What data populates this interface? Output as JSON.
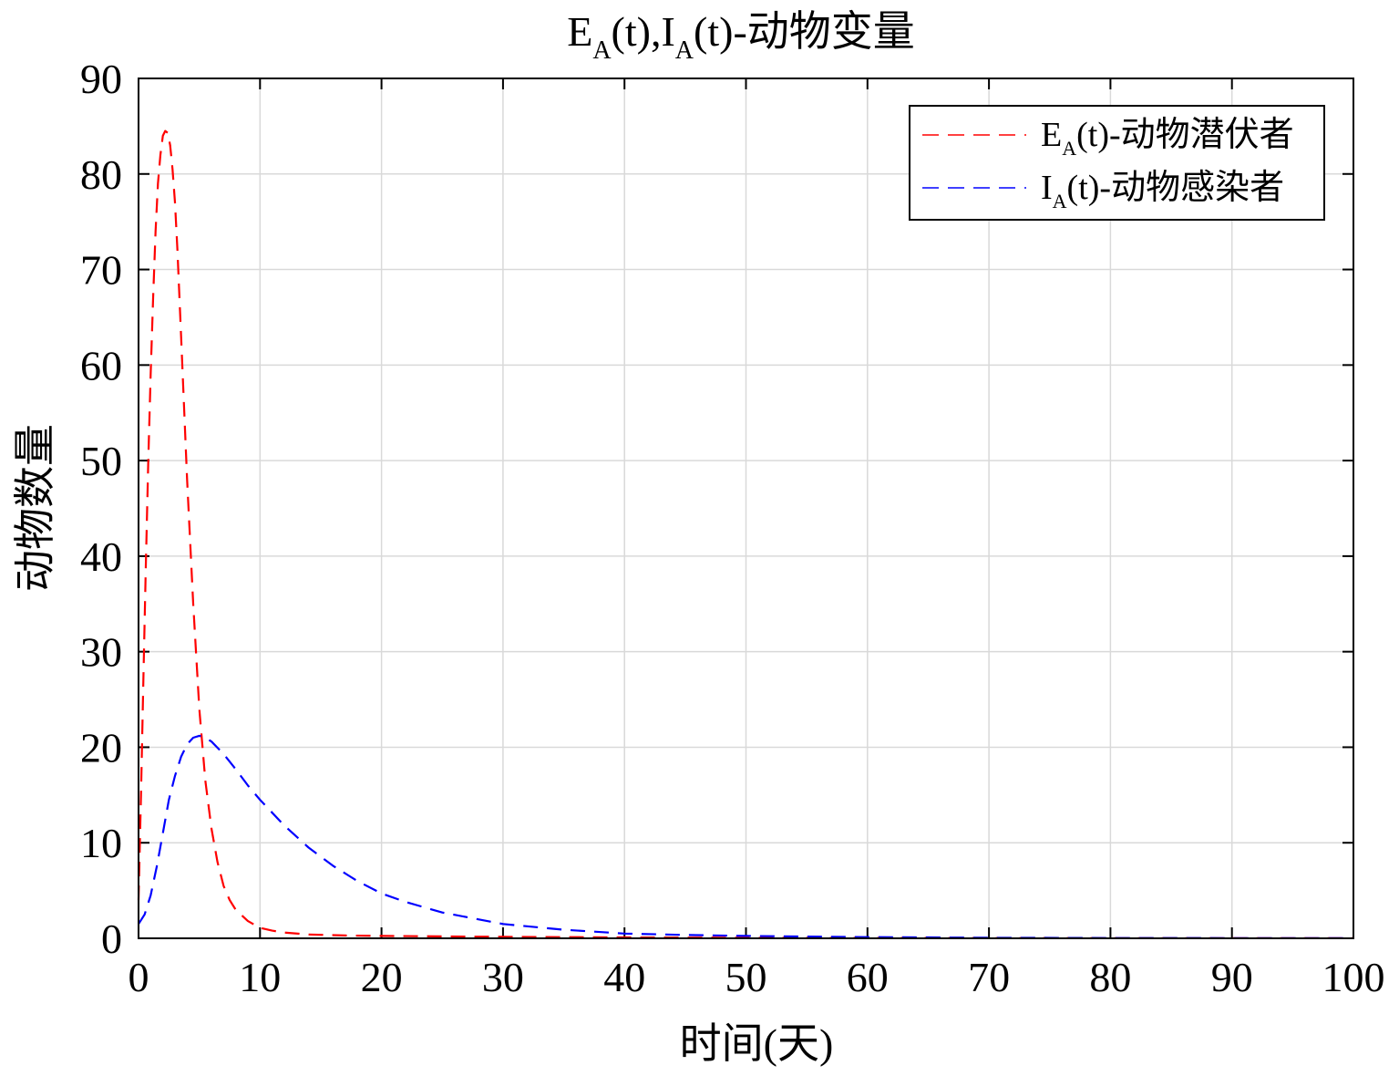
{
  "chart_data": {
    "type": "line",
    "title": {
      "main_1": "E",
      "sub_1": "A",
      "main_2": "(t),I",
      "sub_2": "A",
      "main_3": "(t)-动物变量"
    },
    "xlabel": "时间(天)",
    "ylabel": "动物数量",
    "xlim": [
      0,
      100
    ],
    "ylim": [
      0,
      90
    ],
    "xticks": [
      0,
      10,
      20,
      30,
      40,
      50,
      60,
      70,
      80,
      90,
      100
    ],
    "yticks": [
      0,
      10,
      20,
      30,
      40,
      50,
      60,
      70,
      80,
      90
    ],
    "grid": true,
    "legend_position": "top-right",
    "series": [
      {
        "legend_main": "E",
        "legend_sub": "A",
        "legend_rest": "(t)-动物潜伏者",
        "color": "#ff0000",
        "style": "dashed",
        "x": [
          0,
          0.2,
          0.4,
          0.6,
          0.8,
          1.0,
          1.2,
          1.4,
          1.6,
          1.8,
          2.0,
          2.2,
          2.4,
          2.6,
          2.8,
          3.0,
          3.2,
          3.5,
          4.0,
          4.5,
          5.0,
          5.5,
          6.0,
          6.5,
          7.0,
          7.5,
          8.0,
          9.0,
          10.0,
          11.0,
          12.0,
          14.0,
          17.0,
          20.0,
          30.0,
          40.0,
          50.0,
          60.0,
          70.0,
          80.0,
          90.0,
          100.0
        ],
        "y": [
          4,
          15,
          27,
          39,
          50,
          59,
          67,
          74,
          79,
          82,
          84,
          84.5,
          84.3,
          83,
          80.5,
          77,
          72,
          63,
          48,
          35,
          24,
          16.5,
          11.5,
          8,
          5.5,
          4,
          3,
          1.8,
          1.1,
          0.8,
          0.6,
          0.4,
          0.3,
          0.25,
          0.15,
          0.1,
          0.06,
          0.04,
          0.03,
          0.02,
          0.02,
          0.01
        ]
      },
      {
        "legend_main": "I",
        "legend_sub": "A",
        "legend_rest": "(t)-动物感染者",
        "color": "#0000ff",
        "style": "dashed",
        "x": [
          0,
          0.5,
          1.0,
          1.5,
          2.0,
          2.5,
          3.0,
          3.5,
          4.0,
          4.5,
          5.0,
          5.5,
          6.0,
          7.0,
          8.0,
          9.0,
          10.0,
          12.0,
          14.0,
          16.0,
          18.0,
          20.0,
          22.0,
          25.0,
          30.0,
          35.0,
          40.0,
          45.0,
          50.0,
          60.0,
          70.0,
          80.0,
          90.0,
          100.0
        ],
        "y": [
          1.5,
          2.5,
          4.5,
          7.5,
          11,
          14.5,
          17,
          19,
          20.3,
          21,
          21.2,
          21,
          20.6,
          19.3,
          17.7,
          16,
          14.5,
          11.8,
          9.5,
          7.6,
          6,
          4.7,
          3.8,
          2.7,
          1.5,
          0.9,
          0.5,
          0.35,
          0.25,
          0.12,
          0.06,
          0.03,
          0.02,
          0.01
        ]
      }
    ]
  }
}
